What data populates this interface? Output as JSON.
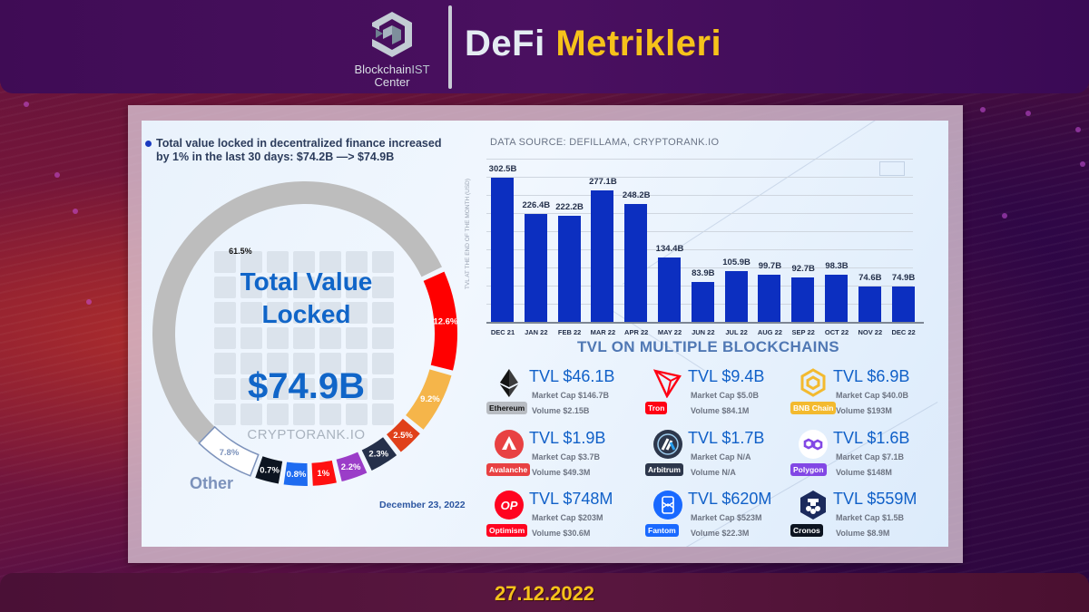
{
  "header": {
    "logo": {
      "name_main": "Blockchain",
      "name_accent": "IST",
      "name_sub": "Center",
      "icon": "cube-hexagon-icon"
    },
    "title_white": "DeFi",
    "title_yellow": "Metrikleri"
  },
  "infographic": {
    "headline": "Total value locked in decentralized finance increased by 1% in the last 30 days: $74.2B —> $74.9B",
    "donut": {
      "center_title": "Total Value Locked",
      "center_value": "$74.9B",
      "watermark": "CRYPTORANK.IO",
      "other_label": "Other",
      "date": "December 23, 2022",
      "segments": [
        {
          "label": "61.5%",
          "value": 61.5,
          "color": "#bdbdbd"
        },
        {
          "label": "12.6%",
          "value": 12.6,
          "color": "#ff0000"
        },
        {
          "label": "9.2%",
          "value": 9.2,
          "color": "#f5b54a"
        },
        {
          "label": "2.5%",
          "value": 2.5,
          "color": "#e0401a"
        },
        {
          "label": "2.3%",
          "value": 2.3,
          "color": "#25304a"
        },
        {
          "label": "2.2%",
          "value": 2.2,
          "color": "#9b3dc8"
        },
        {
          "label": "1%",
          "value": 1.0,
          "color": "#ff1010"
        },
        {
          "label": "0.8%",
          "value": 0.8,
          "color": "#1e6bf0"
        },
        {
          "label": "0.7%",
          "value": 0.7,
          "color": "#0c1420"
        },
        {
          "label": "7.8%",
          "value": 7.8,
          "color": "#ffffff"
        }
      ]
    },
    "data_source": "DATA SOURCE: DEFILLAMA, CRYPTORANK.IO",
    "y_axis_label": "TVL AT THE END OF THE MONTH (USD)",
    "chains_title": "TVL ON MULTIPLE BLOCKCHAINS",
    "chains": [
      {
        "name": "Ethereum",
        "tvl": "TVL $46.1B",
        "market_cap": "Market Cap $146.7B",
        "volume": "Volume $2.15B",
        "badge_color": "#b8bcc2",
        "badge_text_color": "#111111",
        "icon": "ethereum-icon"
      },
      {
        "name": "Tron",
        "tvl": "TVL $9.4B",
        "market_cap": "Market Cap $5.0B",
        "volume": "Volume $84.1M",
        "badge_color": "#ff0013",
        "badge_text_color": "#ffffff",
        "icon": "tron-icon"
      },
      {
        "name": "BNB Chain",
        "tvl": "TVL $6.9B",
        "market_cap": "Market Cap $40.0B",
        "volume": "Volume $193M",
        "badge_color": "#f3ba2f",
        "badge_text_color": "#ffffff",
        "icon": "bnb-icon"
      },
      {
        "name": "Avalanche",
        "tvl": "TVL $1.9B",
        "market_cap": "Market Cap $3.7B",
        "volume": "Volume $49.3M",
        "badge_color": "#e84142",
        "badge_text_color": "#ffffff",
        "icon": "avalanche-icon"
      },
      {
        "name": "Arbitrum",
        "tvl": "TVL $1.7B",
        "market_cap": "Market Cap N/A",
        "volume": "Volume N/A",
        "badge_color": "#2d374b",
        "badge_text_color": "#ffffff",
        "icon": "arbitrum-icon"
      },
      {
        "name": "Polygon",
        "tvl": "TVL $1.6B",
        "market_cap": "Market Cap $7.1B",
        "volume": "Volume $148M",
        "badge_color": "#8247e5",
        "badge_text_color": "#ffffff",
        "icon": "polygon-icon"
      },
      {
        "name": "Optimism",
        "tvl": "TVL $748M",
        "market_cap": "Market Cap $203M",
        "volume": "Volume $30.6M",
        "badge_color": "#ff0420",
        "badge_text_color": "#ffffff",
        "icon": "optimism-icon"
      },
      {
        "name": "Fantom",
        "tvl": "TVL $620M",
        "market_cap": "Market Cap $523M",
        "volume": "Volume $22.3M",
        "badge_color": "#1969ff",
        "badge_text_color": "#ffffff",
        "icon": "fantom-icon"
      },
      {
        "name": "Cronos",
        "tvl": "TVL $559M",
        "market_cap": "Market Cap $1.5B",
        "volume": "Volume $8.9M",
        "badge_color": "#0c1420",
        "badge_text_color": "#ffffff",
        "icon": "cronos-icon"
      }
    ]
  },
  "footer": {
    "date": "27.12.2022"
  },
  "chart_data": [
    {
      "type": "bar",
      "title": "TVL at the end of the month",
      "subtitle": "DATA SOURCE: DEFILLAMA, CRYPTORANK.IO",
      "xlabel": "",
      "ylabel": "TVL AT THE END OF THE MONTH (USD)",
      "categories": [
        "DEC 21",
        "JAN 22",
        "FEB 22",
        "MAR 22",
        "APR 22",
        "MAY 22",
        "JUN 22",
        "JUL 22",
        "AUG 22",
        "SEP 22",
        "OCT 22",
        "NOV 22",
        "DEC 22"
      ],
      "values": [
        302.5,
        226.4,
        222.2,
        277.1,
        248.2,
        134.4,
        83.9,
        105.9,
        99.7,
        92.7,
        98.3,
        74.6,
        74.9
      ],
      "value_labels": [
        "302.5B",
        "226.4B",
        "222.2B",
        "277.1B",
        "248.2B",
        "134.4B",
        "83.9B",
        "105.9B",
        "99.7B",
        "92.7B",
        "98.3B",
        "74.6B",
        "74.9B"
      ],
      "unit": "B USD",
      "ylim": [
        0,
        320
      ],
      "grid": true,
      "color": "#0c2fc0"
    },
    {
      "type": "pie",
      "title": "Total Value Locked $74.9B",
      "labels": [
        "Ethereum",
        "Tron",
        "BNB Chain",
        "Avalanche",
        "Arbitrum",
        "Polygon",
        "Optimism",
        "Fantom",
        "Cronos",
        "Other"
      ],
      "values": [
        61.5,
        12.6,
        9.2,
        2.5,
        2.3,
        2.2,
        1.0,
        0.8,
        0.7,
        7.8
      ],
      "unit": "%",
      "donut": true,
      "center_text": "Total Value Locked $74.9B",
      "annotation": "December 23, 2022"
    }
  ]
}
